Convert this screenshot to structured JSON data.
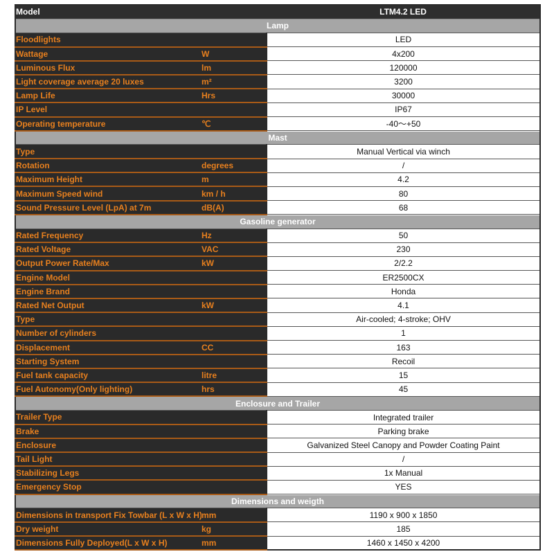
{
  "model": {
    "label": "Model",
    "value": "LTM4.2 LED"
  },
  "sections": [
    {
      "title": "Lamp",
      "rows": [
        {
          "label": "Floodlights",
          "unit": "",
          "value": "LED"
        },
        {
          "label": "Wattage",
          "unit": "W",
          "value": "4x200"
        },
        {
          "label": "Luminous Flux",
          "unit": "lm",
          "value": "120000"
        },
        {
          "label": "Light coverage average 20 luxes",
          "unit": "m²",
          "value": "3200"
        },
        {
          "label": "Lamp Life",
          "unit": "Hrs",
          "value": "30000"
        },
        {
          "label": "IP Level",
          "unit": "",
          "value": "IP67"
        },
        {
          "label": "Operating temperature",
          "unit": "℃",
          "value": "-40～+50"
        }
      ]
    },
    {
      "title": "Mast",
      "rows": [
        {
          "label": "Type",
          "unit": "",
          "value": "Manual Vertical via winch"
        },
        {
          "label": "Rotation",
          "unit": "degrees",
          "value": "/"
        },
        {
          "label": "Maximum Height",
          "unit": "m",
          "value": "4.2"
        },
        {
          "label": "Maximum Speed wind",
          "unit": "km / h",
          "value": "80"
        },
        {
          "label": "Sound Pressure Level (LpA) at 7m",
          "unit": "dB(A)",
          "value": "68"
        }
      ]
    },
    {
      "title": "Gasoline generator",
      "rows": [
        {
          "label": "Rated Frequency",
          "unit": "Hz",
          "value": "50"
        },
        {
          "label": "Rated Voltage",
          "unit": "VAC",
          "value": "230"
        },
        {
          "label": "Output Power Rate/Max",
          "unit": "kW",
          "value": "2/2.2"
        },
        {
          "label": "Engine Model",
          "unit": "",
          "value": "ER2500CX"
        },
        {
          "label": "Engine Brand",
          "unit": "",
          "value": "Honda"
        },
        {
          "label": "Rated Net Output",
          "unit": "kW",
          "value": "4.1"
        },
        {
          "label": "Type",
          "unit": "",
          "value": "Air-cooled; 4-stroke; OHV"
        },
        {
          "label": "Number of cylinders",
          "unit": "",
          "value": "1"
        },
        {
          "label": "Displacement",
          "unit": "CC",
          "value": "163"
        },
        {
          "label": "Starting System",
          "unit": "",
          "value": "Recoil"
        },
        {
          "label": "Fuel tank capacity",
          "unit": "litre",
          "value": "15"
        },
        {
          "label": "Fuel Autonomy(Only lighting)",
          "unit": "hrs",
          "value": "45"
        }
      ]
    },
    {
      "title": "Enclosure and Trailer",
      "rows": [
        {
          "label": "Trailer Type",
          "unit": "",
          "value": "Integrated trailer"
        },
        {
          "label": "Brake",
          "unit": "",
          "value": "Parking brake"
        },
        {
          "label": "Enclosure",
          "unit": "",
          "value": "Galvanized Steel Canopy and Powder Coating Paint"
        },
        {
          "label": "Tail Light",
          "unit": "",
          "value": "/"
        },
        {
          "label": "Stabilizing Legs",
          "unit": "",
          "value": "1x Manual"
        },
        {
          "label": "Emergency Stop",
          "unit": "",
          "value": "YES"
        }
      ]
    },
    {
      "title": "Dimensions and weigth",
      "rows": [
        {
          "label": "Dimensions in transport Fix Towbar (L x W x H)",
          "unit": "mm",
          "value": "1190 x 900 x 1850"
        },
        {
          "label": "Dry weight",
          "unit": "kg",
          "value": "185"
        },
        {
          "label": "Dimensions Fully Deployed(L x W x H)",
          "unit": "mm",
          "value": "1460 x 1450 x 4200"
        }
      ]
    }
  ]
}
